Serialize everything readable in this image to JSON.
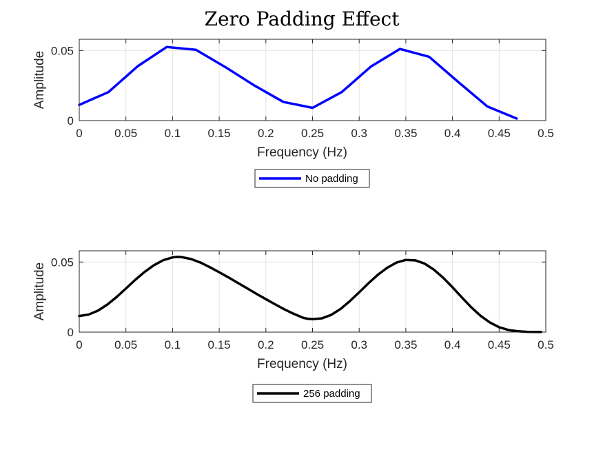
{
  "title": "Zero Padding Effect",
  "chart_data": [
    {
      "type": "line",
      "xlabel": "Frequency (Hz)",
      "ylabel": "Amplitude",
      "xlim": [
        0,
        0.5
      ],
      "ylim": [
        0,
        0.058
      ],
      "xticks": [
        0,
        0.05,
        0.1,
        0.15,
        0.2,
        0.25,
        0.3,
        0.35,
        0.4,
        0.45,
        0.5
      ],
      "xtick_labels": [
        "0",
        "0.05",
        "0.1",
        "0.15",
        "0.2",
        "0.25",
        "0.3",
        "0.35",
        "0.4",
        "0.45",
        "0.5"
      ],
      "yticks": [
        0,
        0.05
      ],
      "ytick_labels": [
        "0",
        "0.05"
      ],
      "grid": true,
      "legend": "bottom-outside",
      "series": [
        {
          "name": "No padding",
          "color": "#0000ff",
          "x": [
            0,
            0.03125,
            0.0625,
            0.09375,
            0.125,
            0.15625,
            0.1875,
            0.21875,
            0.25,
            0.28125,
            0.3125,
            0.34375,
            0.375,
            0.40625,
            0.4375,
            0.46875
          ],
          "y": [
            0.0112,
            0.0203,
            0.0387,
            0.0525,
            0.0505,
            0.0383,
            0.0251,
            0.0133,
            0.0091,
            0.0203,
            0.0385,
            0.0511,
            0.0455,
            0.0275,
            0.01,
            0.0015
          ]
        }
      ]
    },
    {
      "type": "line",
      "xlabel": "Frequency (Hz)",
      "ylabel": "Amplitude",
      "xlim": [
        0,
        0.5
      ],
      "ylim": [
        0,
        0.058
      ],
      "xticks": [
        0,
        0.05,
        0.1,
        0.15,
        0.2,
        0.25,
        0.3,
        0.35,
        0.4,
        0.45,
        0.5
      ],
      "xtick_labels": [
        "0",
        "0.05",
        "0.1",
        "0.15",
        "0.2",
        "0.25",
        "0.3",
        "0.35",
        "0.4",
        "0.45",
        "0.5"
      ],
      "yticks": [
        0,
        0.05
      ],
      "ytick_labels": [
        "0",
        "0.05"
      ],
      "grid": true,
      "legend": "bottom-outside",
      "series": [
        {
          "name": "256 padding",
          "color": "#000000",
          "x": [
            0,
            0.01,
            0.02,
            0.03,
            0.04,
            0.05,
            0.06,
            0.07,
            0.08,
            0.09,
            0.1,
            0.105,
            0.11,
            0.12,
            0.13,
            0.14,
            0.15,
            0.16,
            0.17,
            0.18,
            0.19,
            0.2,
            0.21,
            0.22,
            0.23,
            0.24,
            0.245,
            0.25,
            0.26,
            0.27,
            0.28,
            0.29,
            0.3,
            0.31,
            0.32,
            0.33,
            0.34,
            0.35,
            0.36,
            0.37,
            0.38,
            0.39,
            0.4,
            0.41,
            0.42,
            0.43,
            0.44,
            0.45,
            0.46,
            0.47,
            0.48,
            0.49,
            0.495
          ],
          "y": [
            0.0115,
            0.0125,
            0.0153,
            0.0196,
            0.025,
            0.0311,
            0.0373,
            0.0429,
            0.0477,
            0.0513,
            0.0533,
            0.0537,
            0.0535,
            0.0521,
            0.0496,
            0.0463,
            0.0427,
            0.039,
            0.0351,
            0.0312,
            0.0273,
            0.0235,
            0.0198,
            0.0162,
            0.013,
            0.0102,
            0.0095,
            0.0093,
            0.0098,
            0.0123,
            0.0165,
            0.0221,
            0.0284,
            0.0349,
            0.0409,
            0.0459,
            0.0496,
            0.0515,
            0.0512,
            0.0489,
            0.0446,
            0.0388,
            0.032,
            0.0248,
            0.0178,
            0.0117,
            0.0069,
            0.0035,
            0.0015,
            0.0006,
            0.0002,
            0.0001,
            0.0001
          ]
        }
      ]
    }
  ]
}
